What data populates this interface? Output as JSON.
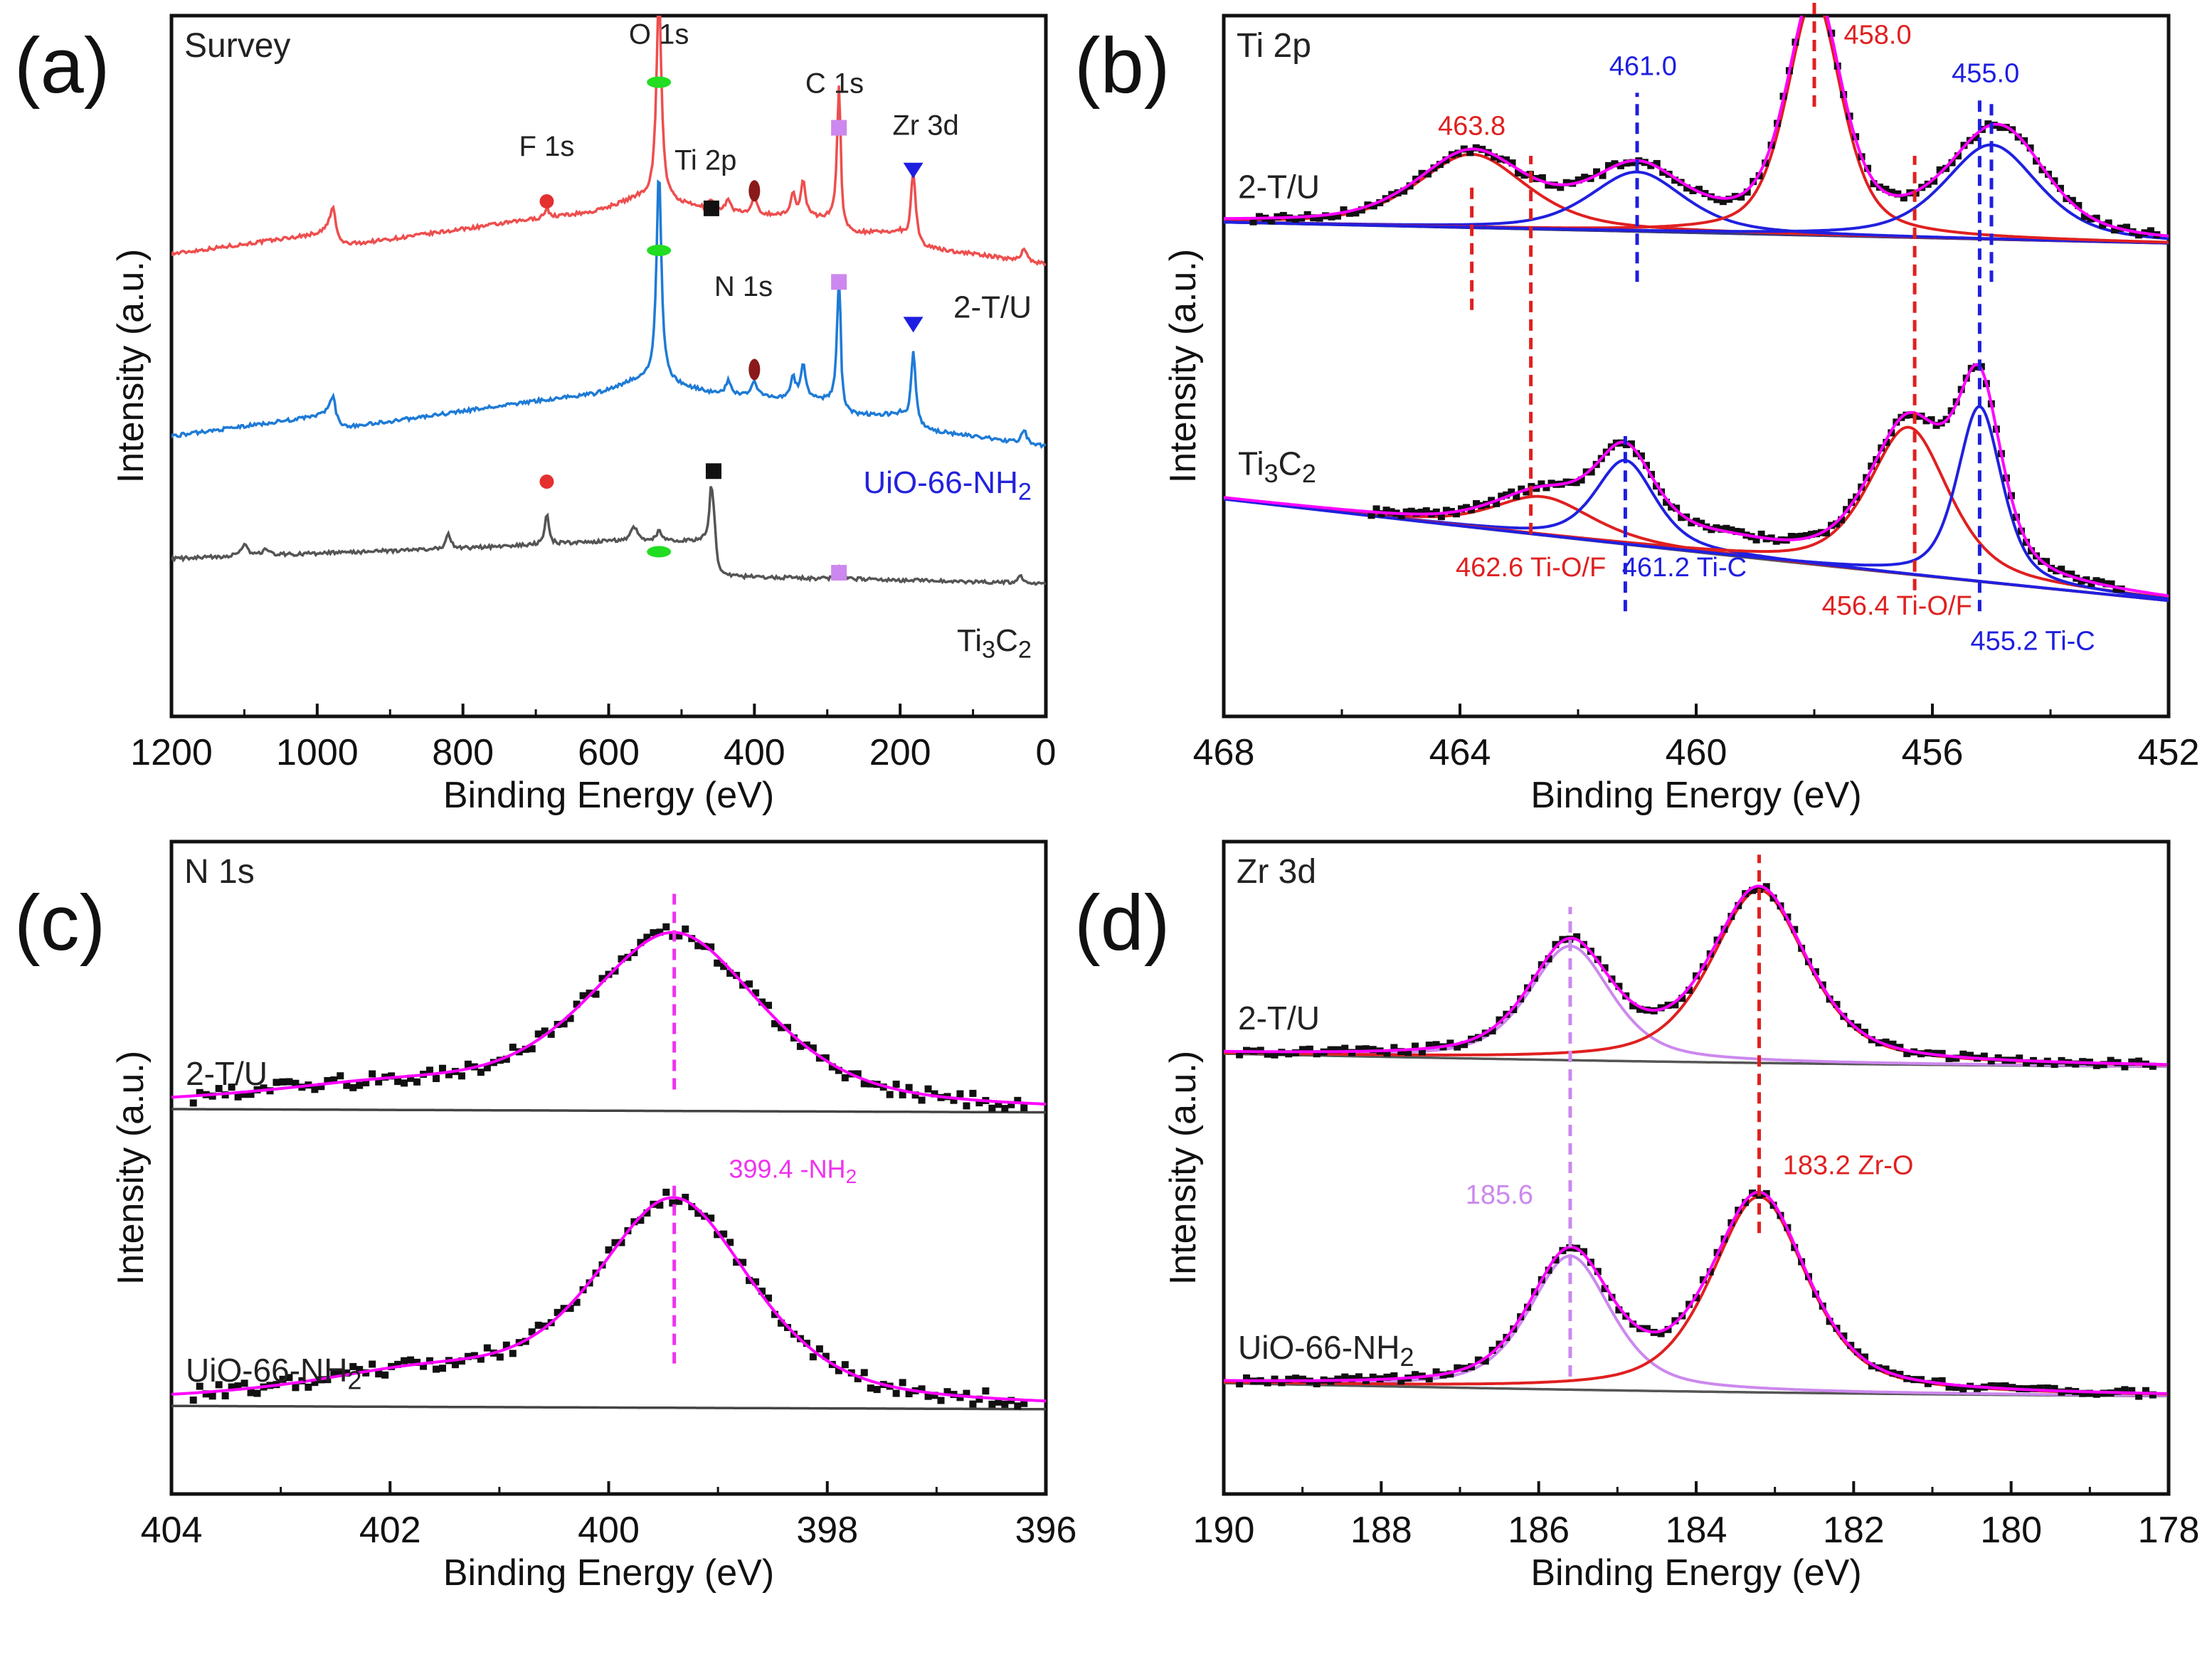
{
  "figure": {
    "type": "xps-spectra-figure"
  },
  "chart_data": [
    {
      "id": "a",
      "type": "line",
      "panel_label": "(a)",
      "title": "Survey",
      "xlabel": "Binding Energy (eV)",
      "ylabel": "Intensity (a.u.)",
      "xlim": [
        1200,
        0
      ],
      "ylim": [
        0,
        100
      ],
      "xticks": [
        1200,
        1000,
        800,
        600,
        400,
        200,
        0
      ],
      "series": [
        {
          "name": "2-T/U",
          "color": "#ee4e4e",
          "label": {
            "text": "2-T/U",
            "color": "#222222"
          },
          "baseline": [
            [
              1200,
              66
            ],
            [
              985,
              69
            ],
            [
              975,
              67
            ],
            [
              700,
              71
            ],
            [
              620,
              72
            ],
            [
              560,
              74
            ],
            [
              540,
              74
            ],
            [
              450,
              72
            ],
            [
              300,
              71
            ],
            [
              281,
              71
            ],
            [
              280,
              69
            ],
            [
              200,
              69
            ],
            [
              184,
              67
            ],
            [
              100,
              66
            ],
            [
              0,
              64.5
            ]
          ],
          "peaks": [
            [
              978,
              5,
              5
            ],
            [
              685,
              1.5,
              3
            ],
            [
              531,
              30,
              4
            ],
            [
              459,
              1.5,
              4
            ],
            [
              436,
              2,
              4
            ],
            [
              400,
              2.2,
              4
            ],
            [
              347,
              3,
              4
            ],
            [
              333,
              5,
              4
            ],
            [
              284,
              19,
              3
            ],
            [
              182,
              11,
              4
            ],
            [
              30,
              2,
              4
            ]
          ]
        },
        {
          "name": "UiO-66-NH2",
          "color": "#1e7bd6",
          "label": {
            "text": "UiO-66-NH",
            "sub": "2",
            "color": "#2222dd"
          },
          "baseline": [
            [
              1200,
              40
            ],
            [
              985,
              43
            ],
            [
              975,
              41
            ],
            [
              700,
              45
            ],
            [
              620,
              46
            ],
            [
              560,
              48
            ],
            [
              540,
              48
            ],
            [
              450,
              46
            ],
            [
              300,
              45
            ],
            [
              281,
              45
            ],
            [
              280,
              43
            ],
            [
              200,
              43
            ],
            [
              184,
              41
            ],
            [
              100,
              40
            ],
            [
              0,
              38.5
            ]
          ],
          "peaks": [
            [
              978,
              4,
              5
            ],
            [
              531,
              30,
              4
            ],
            [
              436,
              2,
              4
            ],
            [
              400,
              2.2,
              4
            ],
            [
              347,
              3,
              4
            ],
            [
              333,
              5,
              4
            ],
            [
              284,
              18,
              3
            ],
            [
              182,
              11,
              4
            ],
            [
              30,
              2,
              4
            ]
          ]
        },
        {
          "name": "Ti3C2",
          "color": "#555555",
          "label": {
            "text": "Ti",
            "sub": "3",
            "text2": "C",
            "sub2": "2",
            "color": "#222222"
          },
          "baseline": [
            [
              1200,
              22.5
            ],
            [
              800,
              24
            ],
            [
              600,
              25
            ],
            [
              460,
              25
            ],
            [
              455,
              20
            ],
            [
              0,
              19
            ]
          ],
          "peaks": [
            [
              1100,
              1.5,
              6
            ],
            [
              1070,
              0.8,
              6
            ],
            [
              820,
              2,
              4
            ],
            [
              685,
              4.5,
              3
            ],
            [
              565,
              2,
              6
            ],
            [
              531,
              1.5,
              4
            ],
            [
              459,
              7,
              3
            ],
            [
              455,
              6,
              3
            ],
            [
              285,
              1.5,
              3
            ],
            [
              35,
              1,
              4
            ]
          ]
        }
      ],
      "markers": [
        {
          "label": "F 1s",
          "shape": "circle",
          "color": "#e53030",
          "x": 685,
          "y": 73.5,
          "label_x": 685,
          "label_y": 80
        },
        {
          "label": "O 1s",
          "shape": "ellipse",
          "color": "#22dd22",
          "x": 531,
          "y": 90.5,
          "label_x": 531,
          "label_y": 96
        },
        {
          "label": "Ti 2p",
          "shape": "square",
          "color": "#111111",
          "x": 459,
          "y": 72.5,
          "label_x": 467,
          "label_y": 78
        },
        {
          "label": "N 1s",
          "shape": "vellipse",
          "color": "#8b1a1a",
          "x": 400,
          "y": 75,
          "label_x": 415,
          "label_y": 60
        },
        {
          "label": "C 1s",
          "shape": "square",
          "color": "#cc88ee",
          "x": 284,
          "y": 84,
          "label_x": 290,
          "label_y": 89
        },
        {
          "label": "Zr 3d",
          "shape": "triangle",
          "color": "#1e1ee0",
          "x": 182,
          "y": 78,
          "label_x": 165,
          "label_y": 83
        },
        {
          "label": "",
          "shape": "ellipse",
          "color": "#22dd22",
          "x": 531,
          "y": 66.5
        },
        {
          "label": "",
          "shape": "square",
          "color": "#cc88ee",
          "x": 284,
          "y": 62
        },
        {
          "label": "",
          "shape": "vellipse",
          "color": "#8b1a1a",
          "x": 400,
          "y": 49.5
        },
        {
          "label": "",
          "shape": "triangle",
          "color": "#1e1ee0",
          "x": 182,
          "y": 56
        },
        {
          "label": "",
          "shape": "circle",
          "color": "#e53030",
          "x": 685,
          "y": 33.5
        },
        {
          "label": "",
          "shape": "ellipse",
          "color": "#22dd22",
          "x": 531,
          "y": 23.5
        },
        {
          "label": "",
          "shape": "square",
          "color": "#111111",
          "x": 456,
          "y": 35
        },
        {
          "label": "",
          "shape": "square",
          "color": "#cc88ee",
          "x": 284,
          "y": 20.5
        }
      ]
    },
    {
      "id": "b",
      "type": "line",
      "panel_label": "(b)",
      "title": "Ti 2p",
      "xlabel": "Binding Energy (eV)",
      "ylabel": "Intensity (a.u.)",
      "xlim": [
        468,
        452
      ],
      "ylim": [
        0,
        100
      ],
      "xticks": [
        468,
        464,
        460,
        456,
        452
      ],
      "spectra": [
        {
          "name": "2-T/U",
          "label": {
            "text": "2-T/U",
            "color": "#222222"
          },
          "background": {
            "from": [
              468,
              70.5
            ],
            "to": [
              452,
              67.5
            ],
            "color": "#3a3a7a"
          },
          "fit_color": "#ff00ff",
          "points_color": "#111111",
          "components": [
            {
              "center": 463.8,
              "amp": 10.5,
              "width": 1.1,
              "color": "#e02020"
            },
            {
              "center": 461.0,
              "amp": 8.5,
              "width": 0.95,
              "color": "#2020e0"
            },
            {
              "center": 458.0,
              "amp": 34,
              "width": 0.55,
              "color": "#e02020"
            },
            {
              "center": 455.0,
              "amp": 13.5,
              "width": 0.95,
              "color": "#2020e0"
            }
          ],
          "extra_envelope": [
            {
              "center": 454.5,
              "amp": 3,
              "width": 0.7
            }
          ],
          "points_range": [
            467.5,
            452.2
          ]
        },
        {
          "name": "Ti3C2",
          "label": {
            "text": "Ti",
            "sub": "3",
            "text2": "C",
            "sub2": "2",
            "color": "#222222"
          },
          "background": {
            "from": [
              468,
              31
            ],
            "to": [
              452,
              16.5
            ],
            "color": "#555555",
            "curve": true
          },
          "fit_color": "#ff00ff",
          "points_color": "#111111",
          "components": [
            {
              "center": 462.6,
              "amp": 5.5,
              "width": 1.0,
              "color": "#e02020"
            },
            {
              "center": 461.2,
              "amp": 12,
              "width": 0.6,
              "color": "#2020e0"
            },
            {
              "center": 456.4,
              "amp": 21,
              "width": 0.8,
              "color": "#e02020"
            },
            {
              "center": 455.2,
              "amp": 25,
              "width": 0.45,
              "color": "#2020e0"
            }
          ],
          "extra_envelope": [
            {
              "center": 459.6,
              "amp": 1.5,
              "width": 1.2
            }
          ],
          "points_range": [
            465.5,
            452.8
          ]
        }
      ],
      "vlines": [
        {
          "x": 463.8,
          "y1": 58,
          "y2": 76,
          "color": "#e02020"
        },
        {
          "x": 462.8,
          "y1": 26,
          "y2": 80,
          "color": "#e02020"
        },
        {
          "x": 461.0,
          "y1": 62,
          "y2": 89,
          "color": "#1e1ee0"
        },
        {
          "x": 458.0,
          "y1": 87,
          "y2": 102,
          "color": "#e02020"
        },
        {
          "x": 456.3,
          "y1": 18,
          "y2": 80,
          "color": "#e02020"
        },
        {
          "x": 455.2,
          "y1": 15,
          "y2": 88,
          "color": "#1e1ee0"
        },
        {
          "x": 455.0,
          "y1": 62,
          "y2": 88,
          "color": "#1e1ee0"
        },
        {
          "x": 461.2,
          "y1": 15,
          "y2": 40,
          "color": "#1e1ee0"
        }
      ],
      "annotations": [
        {
          "text": "458.0",
          "x": 457.5,
          "y": 96,
          "color": "#e02020",
          "anchor": "start"
        },
        {
          "text": "463.8",
          "x": 463.8,
          "y": 83,
          "color": "#e02020",
          "anchor": "middle"
        },
        {
          "text": "461.0",
          "x": 460.9,
          "y": 91.5,
          "color": "#1e1ee0",
          "anchor": "middle"
        },
        {
          "text": "455.0",
          "x": 455.1,
          "y": 90.5,
          "color": "#1e1ee0",
          "anchor": "middle"
        },
        {
          "text": "462.6 Ti-O/F",
          "x": 462.8,
          "y": 20,
          "color": "#e02020",
          "anchor": "middle"
        },
        {
          "text": "461.2 Ti-C",
          "x": 460.2,
          "y": 20,
          "color": "#1e1ee0",
          "anchor": "middle"
        },
        {
          "text": "456.4 Ti-O/F",
          "x": 456.6,
          "y": 14.5,
          "color": "#e02020",
          "anchor": "middle"
        },
        {
          "text": "455.2 Ti-C",
          "x": 454.3,
          "y": 9.5,
          "color": "#1e1ee0",
          "anchor": "middle"
        }
      ]
    },
    {
      "id": "c",
      "type": "line",
      "panel_label": "(c)",
      "title": "N 1s",
      "xlabel": "Binding Energy (eV)",
      "ylabel": "Intensity (a.u.)",
      "xlim": [
        404,
        396
      ],
      "ylim": [
        0,
        100
      ],
      "xticks": [
        404,
        402,
        400,
        398,
        396
      ],
      "spectra": [
        {
          "name": "2-T/U",
          "label": {
            "text": "2-T/U",
            "color": "#222222"
          },
          "background": {
            "from": [
              404,
              59
            ],
            "to": [
              396,
              58.5
            ],
            "color": "#444444"
          },
          "fit_color": "#ff00ff",
          "points_color": "#111111",
          "components": [
            {
              "center": 399.4,
              "amp": 26.5,
              "width": 0.95,
              "color": "#ff00ff",
              "hidden": true
            }
          ],
          "slope": [
            [
              404,
              0.0
            ],
            [
              400,
              0.0
            ]
          ],
          "tail": {
            "center": 402.0,
            "amp": 3.5,
            "width": 1.6
          },
          "points_range": [
            403.8,
            396.2
          ]
        },
        {
          "name": "UiO-66-NH2",
          "label": {
            "text": "UiO-66-NH",
            "sub": "2",
            "color": "#222222"
          },
          "background": {
            "from": [
              404,
              13.5
            ],
            "to": [
              396,
              13
            ],
            "color": "#444444"
          },
          "fit_color": "#ff00ff",
          "points_color": "#111111",
          "components": [
            {
              "center": 399.4,
              "amp": 31,
              "width": 0.85,
              "color": "#ff00ff",
              "hidden": true
            }
          ],
          "tail": {
            "center": 401.7,
            "amp": 5,
            "width": 1.4
          },
          "points_range": [
            403.8,
            396.2
          ]
        }
      ],
      "vlines": [
        {
          "x": 399.4,
          "y1": 62,
          "y2": 92,
          "color": "#ee33ee"
        },
        {
          "x": 399.4,
          "y1": 20,
          "y2": 48,
          "color": "#ee33ee"
        }
      ],
      "annotations": [
        {
          "text": "399.4 -NH",
          "sub": "2",
          "x": 398.9,
          "y": 48.5,
          "color": "#ee33ee",
          "anchor": "start"
        }
      ]
    },
    {
      "id": "d",
      "type": "line",
      "panel_label": "(d)",
      "title": "Zr 3d",
      "xlabel": "Binding Energy (eV)",
      "ylabel": "Intensity (a.u.)",
      "xlim": [
        190,
        178
      ],
      "ylim": [
        0,
        100
      ],
      "xticks": [
        190,
        188,
        186,
        184,
        182,
        180,
        178
      ],
      "spectra": [
        {
          "name": "2-T/U",
          "label": {
            "text": "2-T/U",
            "color": "#222222"
          },
          "background": {
            "from": [
              190,
              67.5
            ],
            "to": [
              178,
              65.5
            ],
            "color": "#555555",
            "curve": true
          },
          "fit_color": "#ff00ff",
          "points_color": "#111111",
          "components": [
            {
              "center": 185.6,
              "amp": 17.5,
              "width": 0.62,
              "color": "#cc88ee"
            },
            {
              "center": 183.2,
              "amp": 26.5,
              "width": 0.72,
              "color": "#e02020"
            }
          ],
          "points_range": [
            189.8,
            178.2
          ]
        },
        {
          "name": "UiO-66-NH2",
          "label": {
            "text": "UiO-66-NH",
            "sub": "2",
            "color": "#222222"
          },
          "background": {
            "from": [
              190,
              17
            ],
            "to": [
              178,
              15
            ],
            "color": "#555555",
            "curve": true
          },
          "fit_color": "#ff00ff",
          "points_color": "#111111",
          "components": [
            {
              "center": 185.6,
              "amp": 20.5,
              "width": 0.62,
              "color": "#cc88ee"
            },
            {
              "center": 183.2,
              "amp": 30,
              "width": 0.72,
              "color": "#e02020"
            }
          ],
          "points_range": [
            189.8,
            178.2
          ]
        }
      ],
      "vlines": [
        {
          "x": 185.6,
          "y1": 18,
          "y2": 90,
          "color": "#cc88ee"
        },
        {
          "x": 183.2,
          "y1": 40,
          "y2": 98,
          "color": "#e02020"
        }
      ],
      "annotations": [
        {
          "text": "183.2 Zr-O",
          "x": 182.9,
          "y": 49,
          "color": "#e02020",
          "anchor": "start"
        },
        {
          "text": "185.6",
          "x": 186.5,
          "y": 44.5,
          "color": "#cc88ee",
          "anchor": "middle"
        }
      ]
    }
  ]
}
